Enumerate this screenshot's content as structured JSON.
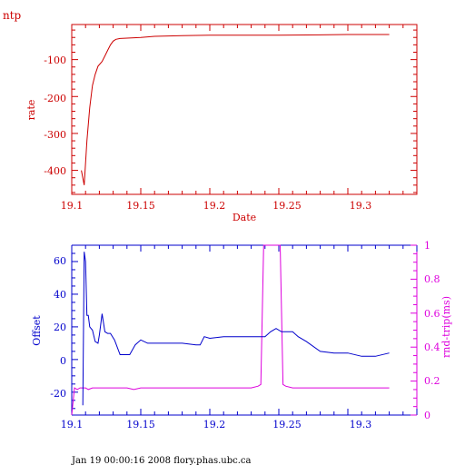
{
  "header": {
    "label": "ntp"
  },
  "footer": {
    "text": "Jan 19 00:00:16 2008 flory.phas.ubc.ca"
  },
  "colors": {
    "rate": "#cc0000",
    "offset": "#0000cc",
    "rtt": "#dd00dd",
    "frame": "#cc0000"
  },
  "chart_data": [
    {
      "type": "line",
      "xlabel": "Date",
      "ylabel": "rate",
      "xlim": [
        19.1,
        19.35
      ],
      "ylim": [
        -465,
        -5
      ],
      "xticks": [
        "19.1",
        "19.15",
        "19.2",
        "19.25",
        "19.3"
      ],
      "yticks": [
        "-100",
        "-200",
        "-300",
        "-400"
      ],
      "series": [
        {
          "x": [
            19.107,
            19.109,
            19.111,
            19.113,
            19.115,
            19.117,
            19.119,
            19.122,
            19.124,
            19.126,
            19.128,
            19.13,
            19.132,
            19.135,
            19.14,
            19.15,
            19.16,
            19.18,
            19.2,
            19.22,
            19.25,
            19.28,
            19.3,
            19.32,
            19.33
          ],
          "y": [
            -400,
            -440,
            -320,
            -230,
            -170,
            -140,
            -118,
            -105,
            -90,
            -75,
            -60,
            -50,
            -45,
            -43,
            -42,
            -40,
            -37,
            -35,
            -34,
            -34,
            -34,
            -33,
            -32,
            -32,
            -32
          ]
        }
      ]
    },
    {
      "type": "line",
      "xlabel": "",
      "ylabel": "Offset",
      "ylabel_right": "rnd-trip(ms)",
      "xlim": [
        19.1,
        19.35
      ],
      "ylim": [
        -34,
        70
      ],
      "ylim_right": [
        0,
        1
      ],
      "xticks": [
        "19.1",
        "19.15",
        "19.2",
        "19.25",
        "19.3"
      ],
      "yticks": [
        "60",
        "40",
        "20",
        "0",
        "-20"
      ],
      "yticks_right": [
        "1",
        "0.8",
        "0.6",
        "0.4",
        "0.2",
        "0"
      ],
      "series": [
        {
          "axis": "left",
          "x": [
            19.108,
            19.109,
            19.11,
            19.111,
            19.112,
            19.113,
            19.115,
            19.117,
            19.119,
            19.12,
            19.122,
            19.124,
            19.126,
            19.128,
            19.131,
            19.135,
            19.138,
            19.142,
            19.146,
            19.15,
            19.155,
            19.16,
            19.18,
            19.19,
            19.193,
            19.196,
            19.2,
            19.21,
            19.22,
            19.235,
            19.24,
            19.244,
            19.248,
            19.252,
            19.256,
            19.26,
            19.264,
            19.27,
            19.28,
            19.29,
            19.3,
            19.31,
            19.32,
            19.33
          ],
          "y": [
            -28,
            66,
            60,
            27,
            27,
            20,
            18,
            11,
            10,
            15,
            28,
            17,
            16,
            16,
            12,
            3,
            3,
            3,
            9,
            12,
            10,
            10,
            10,
            9,
            9,
            14,
            13,
            14,
            14,
            14,
            14,
            17,
            19,
            17,
            17,
            17,
            14,
            11,
            5,
            4,
            4,
            2,
            2,
            4
          ]
        },
        {
          "axis": "right",
          "x": [
            19.1,
            19.102,
            19.104,
            19.106,
            19.108,
            19.11,
            19.112,
            19.115,
            19.12,
            19.13,
            19.14,
            19.145,
            19.15,
            19.17,
            19.2,
            19.23,
            19.235,
            19.237,
            19.239,
            19.24,
            19.251,
            19.253,
            19.255,
            19.26,
            19.28,
            19.3,
            19.32,
            19.33
          ],
          "y": [
            0.0,
            0.16,
            0.15,
            0.16,
            0.16,
            0.16,
            0.15,
            0.16,
            0.16,
            0.16,
            0.16,
            0.15,
            0.16,
            0.16,
            0.16,
            0.16,
            0.17,
            0.18,
            1.0,
            1.0,
            1.0,
            0.18,
            0.17,
            0.16,
            0.16,
            0.16,
            0.16,
            0.16
          ]
        }
      ]
    }
  ]
}
